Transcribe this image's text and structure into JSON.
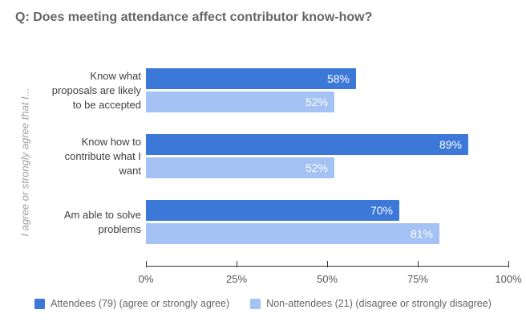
{
  "title": "Q: Does meeting attendance affect contributor know-how?",
  "y_axis_label": "I agree or strongly agree that I...",
  "chart_data": {
    "type": "bar",
    "orientation": "horizontal",
    "title": "Q: Does meeting attendance affect contributor know-how?",
    "ylabel": "I agree or strongly agree that I...",
    "xlabel": "",
    "categories": [
      "Know what proposals are likely to be accepted",
      "Know how to contribute what I want",
      "Am able to solve problems"
    ],
    "series": [
      {
        "name": "Attendees (79) (agree or strongly agree)",
        "color": "#3c78d8",
        "values": [
          58,
          89,
          70
        ],
        "value_labels": [
          "58%",
          "89%",
          "70%"
        ]
      },
      {
        "name": "Non-attendees (21) (disagree or strongly disagree)",
        "color": "#a4c2f4",
        "values": [
          52,
          52,
          81
        ],
        "value_labels": [
          "52%",
          "52%",
          "81%"
        ]
      }
    ],
    "x_ticks": [
      "0%",
      "25%",
      "50%",
      "75%",
      "100%"
    ],
    "xlim": [
      0,
      100
    ],
    "grid": false,
    "legend_position": "bottom"
  },
  "colors": {
    "background": "#ffffff",
    "title_text": "#666666",
    "category_text": "#404040",
    "y_axis_label_text": "#9e9e9e",
    "tick_text": "#555555",
    "axis_line": "#333333",
    "value_label_text": "#ffffff",
    "series1": "#3c78d8",
    "series2": "#a4c2f4"
  }
}
